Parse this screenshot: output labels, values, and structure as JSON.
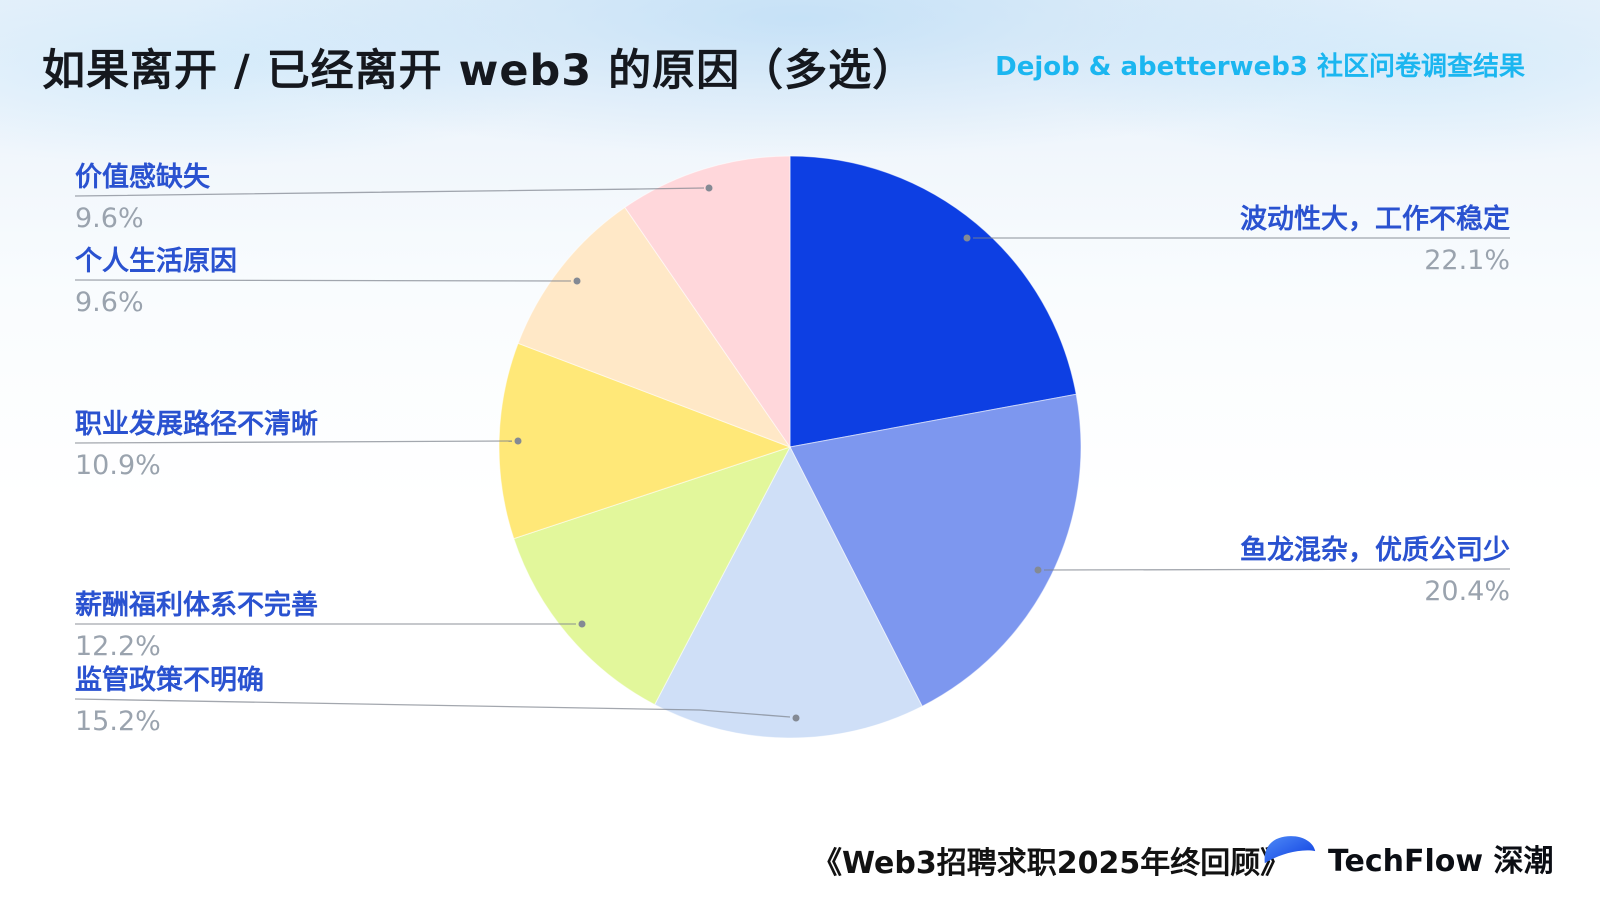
{
  "header": {
    "title": "如果离开 / 已经离开 web3 的原因（多选）",
    "subtitle": "Dejob & abetterweb3 社区问卷调查结果"
  },
  "chart_data": {
    "type": "pie",
    "title": "如果离开 / 已经离开 web3 的原因（多选）",
    "source_note": "Dejob & abetterweb3 社区问卷调查结果",
    "categories": [
      "波动性大，工作不稳定",
      "鱼龙混杂，优质公司少",
      "监管政策不明确",
      "薪酬福利体系不完善",
      "职业发展路径不清晰",
      "个人生活原因",
      "价值感缺失"
    ],
    "values": [
      22.1,
      20.4,
      15.2,
      12.2,
      10.9,
      9.6,
      9.6
    ],
    "percent_labels": [
      "22.1%",
      "20.4%",
      "15.2%",
      "12.2%",
      "10.9%",
      "9.6%",
      "9.6%"
    ],
    "colors": [
      "#0d3fe3",
      "#7d97ef",
      "#cfdff7",
      "#e2f79b",
      "#ffe878",
      "#ffe8c7",
      "#ffd7db"
    ],
    "start_angle_deg": -90,
    "direction": "clockwise",
    "legend_position": "none",
    "label_style": {
      "name_color": "#2a52d0",
      "percent_color": "#9aa3ae"
    }
  },
  "labels": {
    "items": [
      {
        "name": "价值感缺失",
        "pct": "9.6%"
      },
      {
        "name": "个人生活原因",
        "pct": "9.6%"
      },
      {
        "name": "职业发展路径不清晰",
        "pct": "10.9%"
      },
      {
        "name": "薪酬福利体系不完善",
        "pct": "12.2%"
      },
      {
        "name": "监管政策不明确",
        "pct": "15.2%"
      },
      {
        "name": "波动性大，工作不稳定",
        "pct": "22.1%"
      },
      {
        "name": "鱼龙混杂，优质公司少",
        "pct": "20.4%"
      }
    ]
  },
  "footer": {
    "source": "《Web3招聘求职2025年终回顾》",
    "brand": "TechFlow 深潮",
    "logo": "techflow-logo"
  }
}
